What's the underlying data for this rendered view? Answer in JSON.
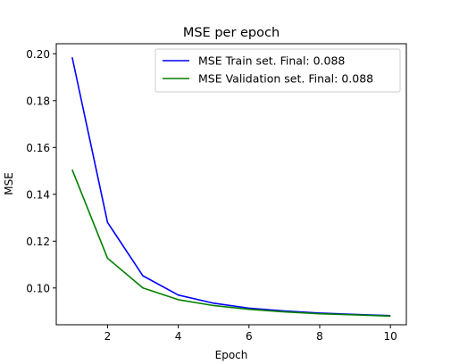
{
  "chart_data": {
    "type": "line",
    "title": "MSE per epoch",
    "xlabel": "Epoch",
    "ylabel": "MSE",
    "x": [
      1,
      2,
      3,
      4,
      5,
      6,
      7,
      8,
      9,
      10
    ],
    "xlim": [
      0.55,
      10.45
    ],
    "ylim": [
      0.0843,
      0.2043
    ],
    "xticks": [
      2,
      4,
      6,
      8,
      10
    ],
    "yticks": [
      0.1,
      0.12,
      0.14,
      0.16,
      0.18,
      0.2
    ],
    "xtick_labels": [
      "2",
      "4",
      "6",
      "8",
      "10"
    ],
    "ytick_labels": [
      "0.10",
      "0.12",
      "0.14",
      "0.16",
      "0.18",
      "0.20"
    ],
    "grid": false,
    "legend_position": "top-right",
    "series": [
      {
        "name": "MSE Train set. Final: 0.088",
        "color": "#0000ff",
        "values": [
          0.1985,
          0.128,
          0.1052,
          0.097,
          0.0935,
          0.0914,
          0.0902,
          0.0893,
          0.0887,
          0.0882
        ]
      },
      {
        "name": "MSE Validation set. Final: 0.088",
        "color": "#008000",
        "values": [
          0.1505,
          0.1127,
          0.1,
          0.095,
          0.0925,
          0.0909,
          0.0898,
          0.089,
          0.0885,
          0.088
        ]
      }
    ]
  }
}
